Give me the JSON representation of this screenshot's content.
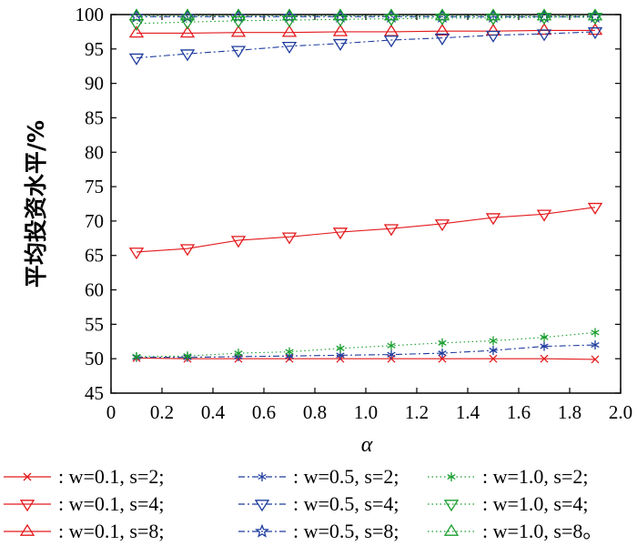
{
  "chart_data": {
    "type": "line",
    "title": "",
    "xlabel": "α",
    "ylabel": "平均投资水平/%",
    "xlim": [
      0,
      2.0
    ],
    "ylim": [
      45,
      100
    ],
    "xticks": [
      "0",
      "0.2",
      "0.4",
      "0.6",
      "0.8",
      "1.0",
      "1.2",
      "1.4",
      "1.6",
      "1.8",
      "2.0"
    ],
    "yticks": [
      "45",
      "50",
      "55",
      "60",
      "65",
      "70",
      "75",
      "80",
      "85",
      "90",
      "95",
      "100"
    ],
    "grid": false,
    "legend_position": "bottom",
    "x": [
      0.1,
      0.3,
      0.5,
      0.7,
      0.9,
      1.1,
      1.3,
      1.5,
      1.7,
      1.9
    ],
    "series": [
      {
        "name": ": w=0.1, s=2;",
        "color": "#e31a1c",
        "dash": "solid",
        "marker": "x",
        "values": [
          50.1,
          50.0,
          50.0,
          50.0,
          50.0,
          50.0,
          50.0,
          50.0,
          50.0,
          49.9
        ]
      },
      {
        "name": ": w=0.1, s=4;",
        "color": "#e31a1c",
        "dash": "solid",
        "marker": "tri-down",
        "values": [
          65.5,
          66.0,
          67.2,
          67.7,
          68.4,
          68.9,
          69.6,
          70.5,
          71.0,
          72.0
        ]
      },
      {
        "name": ": w=0.1, s=8;",
        "color": "#e31a1c",
        "dash": "solid",
        "marker": "tri-up",
        "values": [
          97.3,
          97.3,
          97.4,
          97.4,
          97.5,
          97.5,
          97.6,
          97.6,
          97.7,
          97.7
        ]
      },
      {
        "name": ": w=0.5, s=2;",
        "color": "#1f3c9e",
        "dash": "dashdot",
        "marker": "star6",
        "values": [
          50.2,
          50.2,
          50.3,
          50.4,
          50.5,
          50.6,
          50.8,
          51.2,
          51.8,
          52.0
        ]
      },
      {
        "name": ": w=0.5, s=4;",
        "color": "#1f3c9e",
        "dash": "dashdot",
        "marker": "tri-down",
        "values": [
          93.7,
          94.3,
          94.8,
          95.4,
          95.8,
          96.3,
          96.6,
          97.0,
          97.2,
          97.5
        ]
      },
      {
        "name": ": w=0.5, s=8;",
        "color": "#1f3c9e",
        "dash": "dashdot",
        "marker": "star5",
        "values": [
          99.7,
          99.7,
          99.7,
          99.7,
          99.7,
          99.7,
          99.7,
          99.7,
          99.7,
          99.7
        ]
      },
      {
        "name": ": w=1.0, s=2;",
        "color": "#1a9e2e",
        "dash": "dotted",
        "marker": "star6",
        "values": [
          50.3,
          50.4,
          50.8,
          51.0,
          51.5,
          51.9,
          52.3,
          52.6,
          53.1,
          53.8
        ]
      },
      {
        "name": ": w=1.0, s=4;",
        "color": "#1a9e2e",
        "dash": "dotted",
        "marker": "tri-down",
        "values": [
          98.7,
          98.9,
          99.1,
          99.2,
          99.3,
          99.4,
          99.5,
          99.5,
          99.6,
          99.6
        ]
      },
      {
        "name": ": w=1.0, s=8。",
        "color": "#1a9e2e",
        "dash": "dotted",
        "marker": "tri-up",
        "values": [
          99.8,
          99.8,
          99.8,
          99.8,
          99.8,
          99.8,
          99.8,
          99.8,
          99.8,
          99.8
        ]
      }
    ]
  }
}
